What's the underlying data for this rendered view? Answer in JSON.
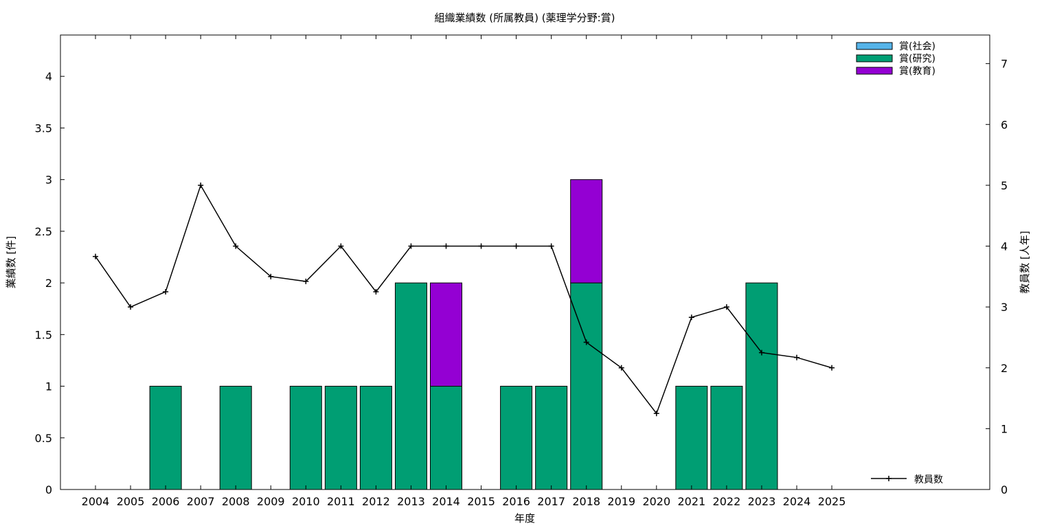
{
  "chart_data": {
    "type": "bar",
    "title": "組織業績数 (所属教員) (薬理学分野:賞)",
    "xlabel": "年度",
    "ylabel": "業績数 [件]",
    "y2label": "教員数 [人年]",
    "ylim": [
      0,
      4.4
    ],
    "y2lim": [
      0,
      7.47
    ],
    "yticks": [
      "0",
      "0.5",
      "1",
      "1.5",
      "2",
      "2.5",
      "3",
      "3.5",
      "4"
    ],
    "y2ticks": [
      "0",
      "1",
      "2",
      "3",
      "4",
      "5",
      "6",
      "7"
    ],
    "grid": false,
    "legend_position": "top-right",
    "categories": [
      "2004",
      "2005",
      "2006",
      "2007",
      "2008",
      "2009",
      "2010",
      "2011",
      "2012",
      "2013",
      "2014",
      "2015",
      "2016",
      "2017",
      "2018",
      "2019",
      "2020",
      "2021",
      "2022",
      "2023",
      "2024",
      "2025"
    ],
    "series": [
      {
        "name": "賞(社会)",
        "color": "#56b4e9",
        "values": [
          0,
          0,
          0,
          0,
          0,
          0,
          0,
          0,
          0,
          0,
          0,
          0,
          0,
          0,
          0,
          0,
          0,
          0,
          0,
          0,
          0,
          0
        ]
      },
      {
        "name": "賞(研究)",
        "color": "#009e73",
        "values": [
          0,
          0,
          1,
          0,
          1,
          0,
          1,
          1,
          1,
          2,
          1,
          0,
          1,
          1,
          2,
          0,
          0,
          1,
          1,
          2,
          0,
          0
        ]
      },
      {
        "name": "賞(教育)",
        "color": "#9400d3",
        "values": [
          0,
          0,
          0,
          0,
          0,
          0,
          0,
          0,
          0,
          0,
          1,
          0,
          0,
          0,
          1,
          0,
          0,
          0,
          0,
          0,
          0,
          0
        ]
      }
    ],
    "line_series": {
      "name": "教員数",
      "color": "#000000",
      "axis": "right",
      "values": [
        3.83,
        3.0,
        3.25,
        5.0,
        4.0,
        3.5,
        3.42,
        4.0,
        3.25,
        4.0,
        4.0,
        4.0,
        4.0,
        4.0,
        2.42,
        2.0,
        1.25,
        2.83,
        3.0,
        2.25,
        2.17,
        2.0
      ]
    }
  }
}
